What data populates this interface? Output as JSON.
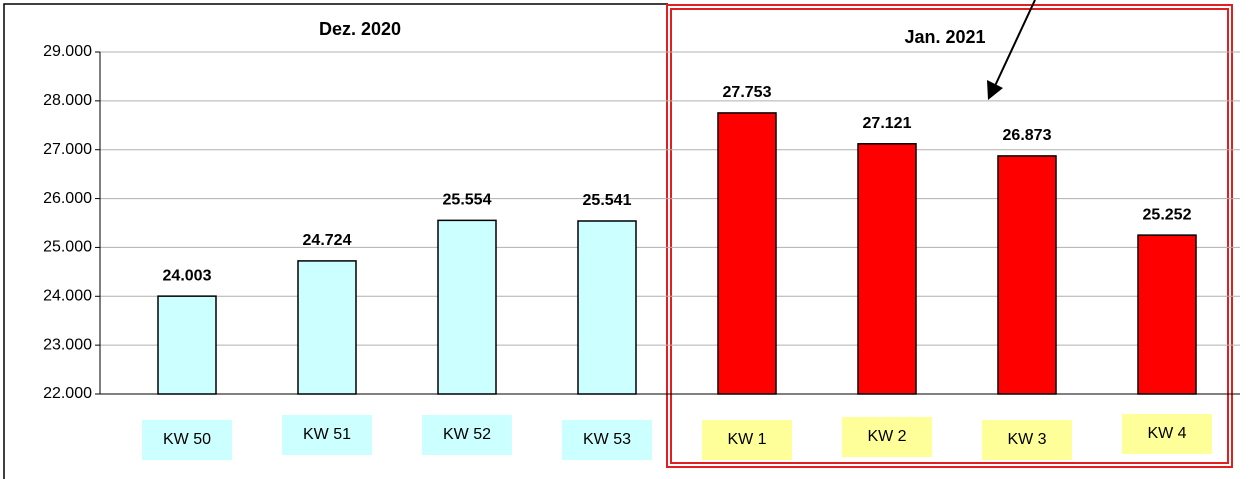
{
  "chart_data": {
    "type": "bar",
    "categories": [
      "KW 50",
      "KW 51",
      "KW 52",
      "KW 53",
      "KW 1",
      "KW 2",
      "KW 3",
      "KW 4"
    ],
    "values": [
      24003,
      24724,
      25554,
      25541,
      27753,
      27121,
      26873,
      25252
    ],
    "value_labels": [
      "24.003",
      "24.724",
      "25.554",
      "25.541",
      "27.753",
      "27.121",
      "26.873",
      "25.252"
    ],
    "colors": [
      "#ccffff",
      "#ccffff",
      "#ccffff",
      "#ccffff",
      "#ff0000",
      "#ff0000",
      "#ff0000",
      "#ff0000"
    ],
    "label_colors": [
      "#ccffff",
      "#ccffff",
      "#ccffff",
      "#ccffff",
      "#ffff99",
      "#ffff99",
      "#ffff99",
      "#ffff99"
    ],
    "annotations": [
      "Dez. 2020",
      "Jan. 2021"
    ],
    "ylim": [
      22000,
      29000
    ],
    "yticks": [
      {
        "value": 22000,
        "label": "22.000"
      },
      {
        "value": 23000,
        "label": "23.000"
      },
      {
        "value": 24000,
        "label": "24.000"
      },
      {
        "value": 25000,
        "label": "25.000"
      },
      {
        "value": 26000,
        "label": "26.000"
      },
      {
        "value": 27000,
        "label": "27.000"
      },
      {
        "value": 28000,
        "label": "28.000"
      },
      {
        "value": 29000,
        "label": "29.000"
      }
    ],
    "grid": true
  }
}
